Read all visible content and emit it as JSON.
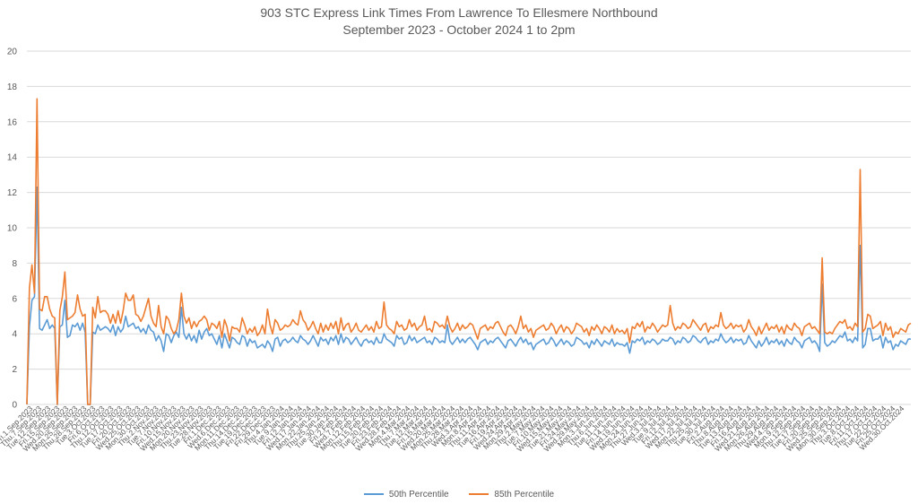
{
  "chart_data": {
    "type": "line",
    "title": "903 STC Express Link Times From Lawrence To Ellesmere Northbound",
    "subtitle": "September 2023 - October 2024 1 to 2pm",
    "xlabel": "",
    "ylabel": "",
    "ylim": [
      0,
      20
    ],
    "yticks": [
      0,
      2,
      4,
      6,
      8,
      10,
      12,
      14,
      16,
      18,
      20
    ],
    "grid": true,
    "legend_position": "bottom",
    "colors": {
      "p50": "#5B9BD5",
      "p85": "#ED7D31",
      "grid": "#D9D9D9",
      "text": "#595959"
    },
    "x_tick_labels": [
      "Fri.1.Sep.2023",
      "Thu.7.Sep.2023",
      "Tue.12.Sep.2023",
      "Fri.15.Sep.2023",
      "Wed.20.Sep.2023",
      "Mon.25.Sep.2023",
      "Thu.28.Sep.2023",
      "Tue.3.Oct.2023",
      "Fri.6.Oct.2023",
      "Thu.12.Oct.2023",
      "Tue.17.Oct.2023",
      "Fri.20.Oct.2023",
      "Wed.25.Oct.2023",
      "Mon.30.Oct.2023",
      "Thu.2.Nov.2023",
      "Tue.7.Nov.2023",
      "Fri.10.Nov.2023",
      "Wed.15.Nov.2023",
      "Mon.20.Nov.2023",
      "Thu.23.Nov.2023",
      "Tue.28.Nov.2023",
      "Fri.1.Dec.2023",
      "Wed.6.Dec.2023",
      "Mon.11.Dec.2023",
      "Thu.14.Dec.2023",
      "Tue.19.Dec.2023",
      "Fri.22.Dec.2023",
      "Fri.29.Dec.2023",
      "Thu.4.Jan.2024",
      "Tue.9.Jan.2024",
      "Fri.12.Jan.2024",
      "Wed.17.Jan.2024",
      "Mon.22.Jan.2024",
      "Thu.25.Jan.2024",
      "Tue.30.Jan.2024",
      "Fri.2.Feb.2024",
      "Wed.7.Feb.2024",
      "Mon.12.Feb.2024",
      "Thu.15.Feb.2024",
      "Tue.20.Feb.2024",
      "Fri.23.Feb.2024",
      "Wed.28.Feb.2024",
      "Mon.4.Mar.2024",
      "Thu.7.Mar.2024",
      "Tue.12.Mar.2024",
      "Fri.15.Mar.2024",
      "Wed.20.Mar.2024",
      "Mon.25.Mar.2024",
      "Thu.28.Mar.2024",
      "Wed.3.Apr.2024",
      "Mon.8.Apr.2024",
      "Thu.11.Apr.2024",
      "Tue.16.Apr.2024",
      "Fri.19.Apr.2024",
      "Wed.24.Apr.2024",
      "Mon.29.Apr.2024",
      "Thu.2.May.2024",
      "Tue.7.May.2024",
      "Fri.10.May.2024",
      "Wed.15.May.2024",
      "Tue.21.May.2024",
      "Fri.24.May.2024",
      "Wed.29.May.2024",
      "Mon.3.Jun.2024",
      "Thu.6.Jun.2024",
      "Tue.11.Jun.2024",
      "Fri.14.Jun.2024",
      "Wed.19.Jun.2024",
      "Mon.24.Jun.2024",
      "Thu.27.Jun.2024",
      "Wed.3.Jul.2024",
      "Tue.9.Jul.2024",
      "Fri.12.Jul.2024",
      "Wed.17.Jul.2024",
      "Mon.22.Jul.2024",
      "Thu.25.Jul.2024",
      "Tue.30.Jul.2024",
      "Fri.2.Aug.2024",
      "Thu.8.Aug.2024",
      "Tue.13.Aug.2024",
      "Fri.16.Aug.2024",
      "Wed.21.Aug.2024",
      "Mon.26.Aug.2024",
      "Thu.29.Aug.2024",
      "Wed.4.Sep.2024",
      "Mon.9.Sep.2024",
      "Thu.12.Sep.2024",
      "Tue.17.Sep.2024",
      "Fri.20.Sep.2024",
      "Wed.25.Sep.2024",
      "Mon.30.Sep.2024",
      "Thu.3.Oct.2024",
      "Tue.8.Oct.2024",
      "Fri.11.Oct.2024",
      "Thu.17.Oct.2024",
      "Tue.22.Oct.2024",
      "Fri.25.Oct.2024",
      "Wed.30.Oct.2024"
    ],
    "series": [
      {
        "name": "50th Percentile",
        "color": "#5B9BD5",
        "values": [
          0,
          4.4,
          5.9,
          6.1,
          12.3,
          4.3,
          4.2,
          4.5,
          4.8,
          4.3,
          4.5,
          4.3,
          0,
          4.4,
          4.5,
          5.9,
          3.8,
          3.9,
          4.5,
          4.4,
          4.6,
          4.2,
          4.6,
          4.1,
          0,
          0,
          4.1,
          4.0,
          4.5,
          4.2,
          4.3,
          4.4,
          4.3,
          4.1,
          4.5,
          3.9,
          4.4,
          4.1,
          4.3,
          5.0,
          4.4,
          4.5,
          4.6,
          4.3,
          4.4,
          4.1,
          4.3,
          4.0,
          4.5,
          4.2,
          4.1,
          3.6,
          3.9,
          3.6,
          3.0,
          4.0,
          3.9,
          3.5,
          3.9,
          4.1,
          3.8,
          5.5,
          4.0,
          3.7,
          4.0,
          3.6,
          3.9,
          3.5,
          4.2,
          3.7,
          4.1,
          4.3,
          3.9,
          4.0,
          3.7,
          3.4,
          3.9,
          3.2,
          4.0,
          3.6,
          3.2,
          3.8,
          3.7,
          3.5,
          3.4,
          3.9,
          3.8,
          3.3,
          3.7,
          3.5,
          3.6,
          3.2,
          3.3,
          3.4,
          3.2,
          3.6,
          3.4,
          3.0,
          3.7,
          3.8,
          3.3,
          3.6,
          3.7,
          3.5,
          3.6,
          3.8,
          3.6,
          3.5,
          3.9,
          3.7,
          3.6,
          3.4,
          3.6,
          3.9,
          3.6,
          3.3,
          3.8,
          3.6,
          3.7,
          3.4,
          3.8,
          3.6,
          3.9,
          3.4,
          4.0,
          3.5,
          3.8,
          3.7,
          3.4,
          3.6,
          3.8,
          3.5,
          3.3,
          3.6,
          3.7,
          3.5,
          3.6,
          3.4,
          3.8,
          3.5,
          3.5,
          4.0,
          3.7,
          3.6,
          3.5,
          3.3,
          3.9,
          3.7,
          3.8,
          3.4,
          3.5,
          3.9,
          3.6,
          3.8,
          3.5,
          3.6,
          3.7,
          3.8,
          3.5,
          3.6,
          3.4,
          3.8,
          3.7,
          3.5,
          3.6,
          3.5,
          4.5,
          3.6,
          3.4,
          3.6,
          3.8,
          3.5,
          3.7,
          3.5,
          3.7,
          3.8,
          3.6,
          3.4,
          3.1,
          3.5,
          3.6,
          3.7,
          3.4,
          3.6,
          3.5,
          3.7,
          3.8,
          3.6,
          3.4,
          3.2,
          3.6,
          3.7,
          3.5,
          3.3,
          3.6,
          3.8,
          3.5,
          3.7,
          3.4,
          3.5,
          3.1,
          3.4,
          3.5,
          3.6,
          3.7,
          3.4,
          3.5,
          3.8,
          3.6,
          3.3,
          3.5,
          3.7,
          3.4,
          3.6,
          3.5,
          3.3,
          3.4,
          3.8,
          3.7,
          3.6,
          3.4,
          3.5,
          3.2,
          3.6,
          3.4,
          3.7,
          3.5,
          3.3,
          3.6,
          3.5,
          3.4,
          3.7,
          3.3,
          3.5,
          3.4,
          3.4,
          3.3,
          3.5,
          2.9,
          3.6,
          3.5,
          3.7,
          3.6,
          3.8,
          3.4,
          3.6,
          3.5,
          3.7,
          3.6,
          3.4,
          3.5,
          3.7,
          3.6,
          3.6,
          3.8,
          3.7,
          3.4,
          3.6,
          3.5,
          3.8,
          3.7,
          3.5,
          3.6,
          3.9,
          3.8,
          3.6,
          3.5,
          3.7,
          3.8,
          3.4,
          3.6,
          3.5,
          3.7,
          3.6,
          4.0,
          3.7,
          3.5,
          3.6,
          3.8,
          3.5,
          3.7,
          3.6,
          3.7,
          3.4,
          3.5,
          3.9,
          3.6,
          3.4,
          3.2,
          3.6,
          3.3,
          3.5,
          3.8,
          3.4,
          3.6,
          3.5,
          3.7,
          3.4,
          3.6,
          3.3,
          3.7,
          3.5,
          3.4,
          3.8,
          3.6,
          3.5,
          3.2,
          3.6,
          3.7,
          3.8,
          3.5,
          3.6,
          3.4,
          3.0,
          6.8,
          3.5,
          3.3,
          3.4,
          3.6,
          3.5,
          3.7,
          3.9,
          3.8,
          4.1,
          3.6,
          3.7,
          3.5,
          3.8,
          3.6,
          9.0,
          3.2,
          3.4,
          4.3,
          4.3,
          3.6,
          3.7,
          3.7,
          3.9,
          3.2,
          3.8,
          3.5,
          3.6,
          3.1,
          3.4,
          3.3,
          3.6,
          3.5,
          3.4,
          3.7,
          3.7
        ]
      },
      {
        "name": "85th Percentile",
        "color": "#ED7D31",
        "values": [
          0,
          6.6,
          7.9,
          6.3,
          17.3,
          5.4,
          5.3,
          6.1,
          6.1,
          5.4,
          5.0,
          4.9,
          0,
          5.3,
          6.1,
          7.5,
          4.8,
          4.9,
          5.0,
          5.2,
          6.2,
          5.4,
          5.0,
          5.1,
          0,
          0,
          5.5,
          4.9,
          6.1,
          5.2,
          5.3,
          5.3,
          5.1,
          4.6,
          5.1,
          4.6,
          5.3,
          4.6,
          5.3,
          6.3,
          5.9,
          5.9,
          6.2,
          5.1,
          5.0,
          4.7,
          5.0,
          5.5,
          6.0,
          5.0,
          4.6,
          4.4,
          5.6,
          4.4,
          4.0,
          5.0,
          4.8,
          4.3,
          4.0,
          4.2,
          4.8,
          6.3,
          5.0,
          4.6,
          4.9,
          4.3,
          4.7,
          4.4,
          4.7,
          4.8,
          5.0,
          4.8,
          4.2,
          4.6,
          4.5,
          4.3,
          4.7,
          3.8,
          4.8,
          4.4,
          3.6,
          4.4,
          4.3,
          4.3,
          4.1,
          4.9,
          4.5,
          4.0,
          4.3,
          4.1,
          4.4,
          3.9,
          4.1,
          4.5,
          4.0,
          5.4,
          4.5,
          4.0,
          4.8,
          4.6,
          4.2,
          4.3,
          4.5,
          4.4,
          4.5,
          4.8,
          4.6,
          4.5,
          5.3,
          4.8,
          4.6,
          4.2,
          4.4,
          4.7,
          4.3,
          4.0,
          4.6,
          4.1,
          4.5,
          4.2,
          4.6,
          4.3,
          4.7,
          4.0,
          4.9,
          4.2,
          4.5,
          4.6,
          4.1,
          4.3,
          4.6,
          4.2,
          4.1,
          4.3,
          4.5,
          4.2,
          4.4,
          4.1,
          4.7,
          4.3,
          4.4,
          5.8,
          4.5,
          4.3,
          4.2,
          4.0,
          4.7,
          4.4,
          4.5,
          4.2,
          4.3,
          4.8,
          4.4,
          4.6,
          4.2,
          4.4,
          4.5,
          5.0,
          4.2,
          4.3,
          4.1,
          4.7,
          4.6,
          4.4,
          4.5,
          4.3,
          5.0,
          4.4,
          4.1,
          4.3,
          4.6,
          4.2,
          4.5,
          4.3,
          4.4,
          4.6,
          4.5,
          4.1,
          3.7,
          4.3,
          4.4,
          4.5,
          4.2,
          4.4,
          4.3,
          4.6,
          4.7,
          4.4,
          4.1,
          3.9,
          4.4,
          4.5,
          4.3,
          4.0,
          4.4,
          5.0,
          4.3,
          4.5,
          4.1,
          4.3,
          3.8,
          4.2,
          4.3,
          4.4,
          4.5,
          4.2,
          4.3,
          4.6,
          4.4,
          4.0,
          4.3,
          4.5,
          4.1,
          4.4,
          4.3,
          4.0,
          4.2,
          4.6,
          4.5,
          4.4,
          4.1,
          4.3,
          3.9,
          4.4,
          4.2,
          4.5,
          4.3,
          4.0,
          4.4,
          4.3,
          4.1,
          4.5,
          4.0,
          4.3,
          4.1,
          4.2,
          4.0,
          4.3,
          3.5,
          4.4,
          4.3,
          4.6,
          4.4,
          4.7,
          4.1,
          4.4,
          4.3,
          4.6,
          4.4,
          4.1,
          4.3,
          4.5,
          4.4,
          4.5,
          5.6,
          4.6,
          4.2,
          4.4,
          4.3,
          4.6,
          4.5,
          4.3,
          4.4,
          4.8,
          4.6,
          4.4,
          4.2,
          4.5,
          4.6,
          4.1,
          4.4,
          4.3,
          4.5,
          4.4,
          5.2,
          4.5,
          4.3,
          4.4,
          4.6,
          4.3,
          4.5,
          4.4,
          4.5,
          4.1,
          4.3,
          4.8,
          4.4,
          4.2,
          3.9,
          4.4,
          4.0,
          4.3,
          4.6,
          4.2,
          4.4,
          4.3,
          4.5,
          4.1,
          4.4,
          4.0,
          4.5,
          4.3,
          4.2,
          4.6,
          4.4,
          4.3,
          3.9,
          4.4,
          4.5,
          4.6,
          4.3,
          4.4,
          4.2,
          4.0,
          8.3,
          4.1,
          4.0,
          4.1,
          4.0,
          4.3,
          4.5,
          4.7,
          4.6,
          4.8,
          4.3,
          4.4,
          4.2,
          4.6,
          4.4,
          13.3,
          4.1,
          4.3,
          5.1,
          5.0,
          4.3,
          4.4,
          4.5,
          4.7,
          3.9,
          4.6,
          4.2,
          4.4,
          3.8,
          4.1,
          4.0,
          4.3,
          4.2,
          4.1,
          4.5,
          4.6
        ]
      }
    ]
  }
}
